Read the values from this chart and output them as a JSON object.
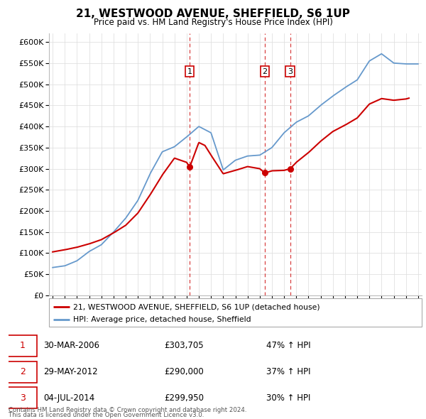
{
  "title": "21, WESTWOOD AVENUE, SHEFFIELD, S6 1UP",
  "subtitle": "Price paid vs. HM Land Registry's House Price Index (HPI)",
  "background_color": "#ffffff",
  "grid_color": "#e0e0e0",
  "transactions": [
    {
      "label": "1",
      "date": 2006.25,
      "price": 303705,
      "pct": "47%",
      "date_str": "30-MAR-2006",
      "price_str": "£303,705"
    },
    {
      "label": "2",
      "date": 2012.42,
      "price": 290000,
      "pct": "37%",
      "date_str": "29-MAY-2012",
      "price_str": "£290,000"
    },
    {
      "label": "3",
      "date": 2014.5,
      "price": 299950,
      "pct": "30%",
      "date_str": "04-JUL-2014",
      "price_str": "£299,950"
    }
  ],
  "legend_property": "21, WESTWOOD AVENUE, SHEFFIELD, S6 1UP (detached house)",
  "legend_hpi": "HPI: Average price, detached house, Sheffield",
  "footer1": "Contains HM Land Registry data © Crown copyright and database right 2024.",
  "footer2": "This data is licensed under the Open Government Licence v3.0.",
  "red_color": "#cc0000",
  "blue_color": "#6699cc",
  "ylim": [
    0,
    620000
  ],
  "xlim": [
    1994.7,
    2025.3
  ],
  "yticks": [
    0,
    50000,
    100000,
    150000,
    200000,
    250000,
    300000,
    350000,
    400000,
    450000,
    500000,
    550000,
    600000
  ],
  "ytick_labels": [
    "£0",
    "£50K",
    "£100K",
    "£150K",
    "£200K",
    "£250K",
    "£300K",
    "£350K",
    "£400K",
    "£450K",
    "£500K",
    "£550K",
    "£600K"
  ],
  "hpi_years": [
    1995,
    1996,
    1997,
    1998,
    1999,
    2000,
    2001,
    2002,
    2003,
    2004,
    2005,
    2006,
    2007,
    2008,
    2009,
    2010,
    2011,
    2012,
    2013,
    2014,
    2015,
    2016,
    2017,
    2018,
    2019,
    2020,
    2021,
    2022,
    2023,
    2024,
    2025
  ],
  "hpi_vals": [
    66000,
    70000,
    82000,
    104000,
    120000,
    150000,
    183000,
    225000,
    288000,
    340000,
    352000,
    375000,
    400000,
    385000,
    297000,
    320000,
    330000,
    332000,
    350000,
    385000,
    410000,
    425000,
    450000,
    472000,
    492000,
    510000,
    555000,
    572000,
    550000,
    548000,
    548000
  ],
  "prop_years": [
    1995,
    1996,
    1997,
    1998,
    1999,
    2000,
    2001,
    2002,
    2003,
    2004,
    2005,
    2006,
    2006.25,
    2007,
    2007.5,
    2008,
    2009,
    2010,
    2011,
    2012,
    2012.42,
    2013,
    2014,
    2014.5,
    2015,
    2016,
    2017,
    2018,
    2019,
    2020,
    2021,
    2022,
    2023,
    2024,
    2024.25
  ],
  "prop_vals": [
    103000,
    108000,
    114000,
    122000,
    132000,
    148000,
    166000,
    195000,
    238000,
    285000,
    325000,
    315000,
    303705,
    362000,
    355000,
    332000,
    288000,
    296000,
    305000,
    300000,
    290000,
    295000,
    296000,
    299950,
    315000,
    338000,
    365000,
    388000,
    403000,
    420000,
    453000,
    466000,
    462000,
    465000,
    467000
  ]
}
